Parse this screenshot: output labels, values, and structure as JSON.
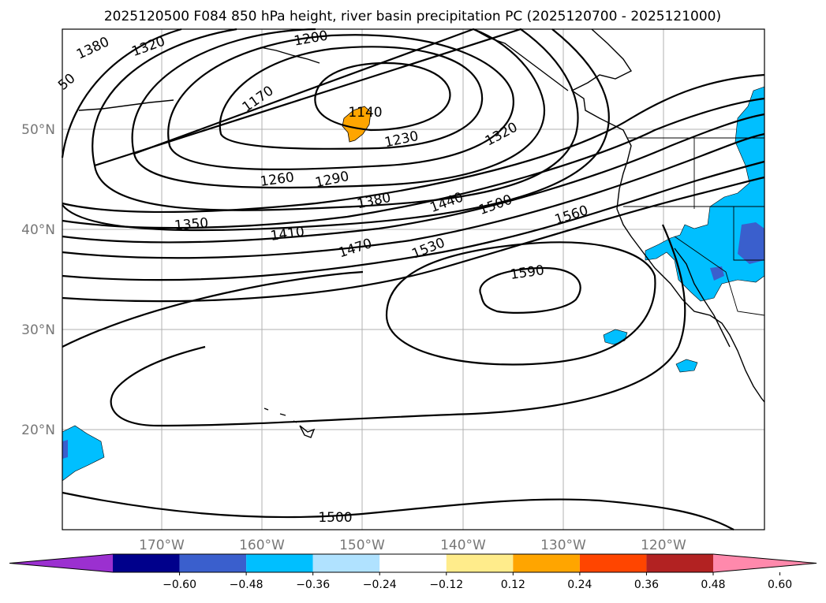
{
  "title": "2025120500 F084 850 hPa height, river basin precipitation PC (2025120700 - 2025121000)",
  "lat_labels": [
    "50°N",
    "40°N",
    "30°N",
    "20°N"
  ],
  "lon_labels": [
    "170°W",
    "160°W",
    "150°W",
    "140°W",
    "130°W",
    "120°W"
  ],
  "contour_labels": [
    "1380",
    "1320",
    "1200",
    "50",
    "1170",
    "1140",
    "1230",
    "1320",
    "1260",
    "1290",
    "1380",
    "1440",
    "1500",
    "1560",
    "1350",
    "1410",
    "1470",
    "1530",
    "1590",
    "1500"
  ],
  "colorbar": {
    "colors": [
      "#9b30d0",
      "#00008b",
      "#3a5fcd",
      "#00bfff",
      "#b0e2ff",
      "#ffffff",
      "#ffec8b",
      "#ffa500",
      "#ff4500",
      "#b22222",
      "#ff89ac"
    ],
    "ticks": [
      "−0.60",
      "−0.48",
      "−0.36",
      "−0.24",
      "−0.12",
      "0.12",
      "0.24",
      "0.36",
      "0.48",
      "0.60"
    ]
  },
  "colors": {
    "positive_pc": "#ffa500",
    "negative_pc_light": "#00bfff",
    "negative_pc_dark": "#3a5fcd"
  }
}
